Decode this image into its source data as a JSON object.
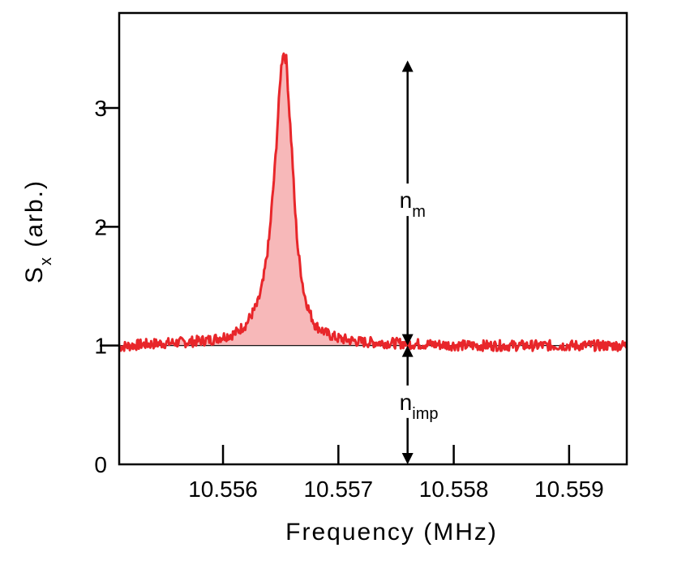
{
  "chart_data": {
    "type": "line",
    "xlabel": "Frequency (MHz)",
    "ylabel": "S",
    "ylabel_sub": "x",
    "ylabel_suffix": " (arb.)",
    "xlim": [
      10.5551,
      10.5595
    ],
    "ylim": [
      0,
      3.8
    ],
    "xticks": [
      {
        "value": 10.556,
        "label": "10.556"
      },
      {
        "value": 10.557,
        "label": "10.557"
      },
      {
        "value": 10.558,
        "label": "10.558"
      },
      {
        "value": 10.559,
        "label": "10.559"
      }
    ],
    "yticks": [
      {
        "value": 0,
        "label": "0"
      },
      {
        "value": 1,
        "label": "1"
      },
      {
        "value": 2,
        "label": "2"
      },
      {
        "value": 3,
        "label": "3"
      }
    ],
    "series": [
      {
        "color": "#e8262a",
        "fill_color": "#f7b8b9",
        "baseline": 1.0,
        "x": [
          10.5551,
          10.5553,
          10.5555,
          10.5557,
          10.5559,
          10.5561,
          10.5562,
          10.5563,
          10.55635,
          10.5564,
          10.55645,
          10.5565,
          10.55652,
          10.55655,
          10.55657,
          10.5566,
          10.55662,
          10.55665,
          10.5567,
          10.55675,
          10.5568,
          10.5569,
          10.557,
          10.5572,
          10.5575,
          10.5578,
          10.5581,
          10.5584,
          10.5587,
          10.559,
          10.5593,
          10.5595
        ],
        "y": [
          0.99,
          1.01,
          1.02,
          1.03,
          1.05,
          1.1,
          1.18,
          1.35,
          1.55,
          1.9,
          2.5,
          3.3,
          3.47,
          3.4,
          3.05,
          2.6,
          2.2,
          1.8,
          1.45,
          1.28,
          1.17,
          1.1,
          1.06,
          1.03,
          1.02,
          1.01,
          1.0,
          1.0,
          1.0,
          1.0,
          1.0,
          1.0
        ]
      }
    ],
    "reference_line": {
      "y": 1.0,
      "color": "#000000"
    },
    "annotations": [
      {
        "text": "n",
        "sub": "m",
        "x": 10.5576,
        "y_from": 1.0,
        "y_to": 3.4
      },
      {
        "text": "n",
        "sub": "imp",
        "x": 10.5576,
        "y_from": 0.0,
        "y_to": 1.0
      }
    ]
  }
}
